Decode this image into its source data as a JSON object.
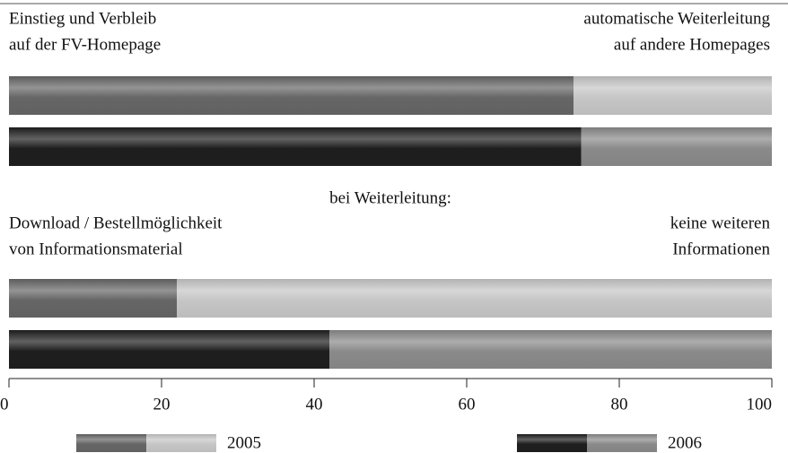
{
  "chart_data": {
    "type": "bar",
    "orientation": "horizontal",
    "stacked": true,
    "groups": [
      {
        "left": [
          "Einstieg und Verbleib",
          "auf der FV-Homepage"
        ],
        "right": [
          "automatische Weiterleitung",
          "auf andere Homepages"
        ]
      },
      {
        "heading": "bei Weiterleitung:",
        "left": [
          "Download / Bestellmöglichkeit",
          "von Informationsmaterial"
        ],
        "right": [
          "keine weiteren",
          "Informationen"
        ]
      }
    ],
    "series": [
      {
        "name": "2005",
        "colors": [
          "#666666",
          "#c6c6c6"
        ],
        "values": [
          [
            74,
            26
          ],
          [
            22,
            78
          ]
        ]
      },
      {
        "name": "2006",
        "colors": [
          "#1e1e1e",
          "#8a8a8a"
        ],
        "values": [
          [
            75,
            25
          ],
          [
            42,
            58
          ]
        ]
      }
    ],
    "xlim": [
      0,
      100
    ],
    "xticks": [
      0,
      20,
      40,
      60,
      80,
      100
    ]
  }
}
